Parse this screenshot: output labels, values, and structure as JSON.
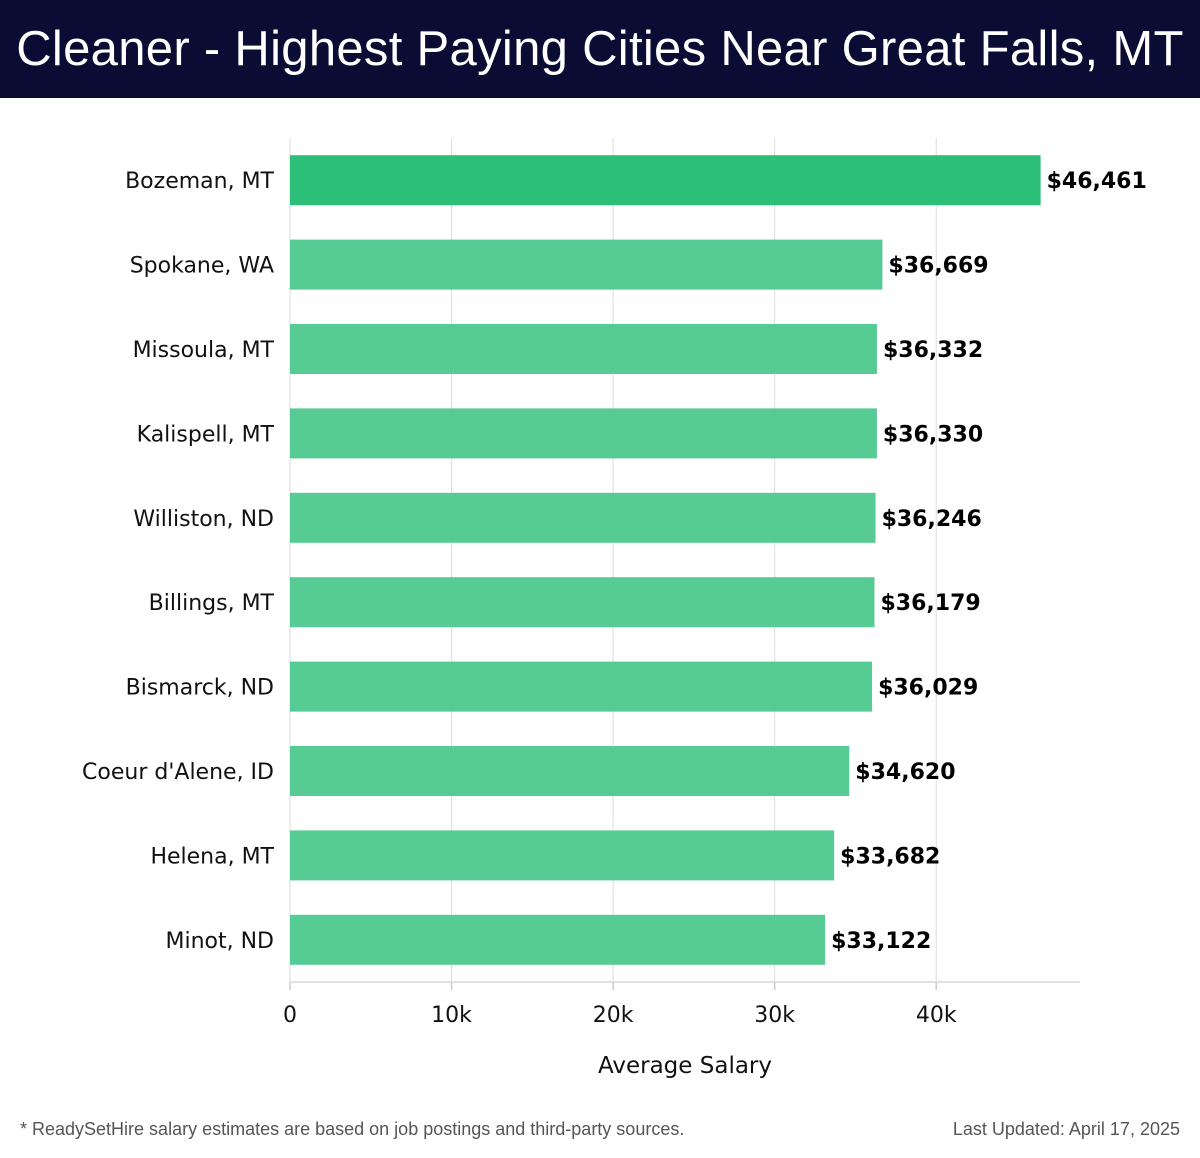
{
  "header": {
    "title": "Cleaner - Highest Paying Cities Near Great Falls, MT"
  },
  "chart_data": {
    "type": "bar",
    "orientation": "horizontal",
    "title": "Cleaner - Highest Paying Cities Near Great Falls, MT",
    "categories": [
      "Bozeman, MT",
      "Spokane, WA",
      "Missoula, MT",
      "Kalispell, MT",
      "Williston, ND",
      "Billings, MT",
      "Bismarck, ND",
      "Coeur d'Alene, ID",
      "Helena, MT",
      "Minot, ND"
    ],
    "values": [
      46461,
      36669,
      36332,
      36330,
      36246,
      36179,
      36029,
      34620,
      33682,
      33122
    ],
    "labels": [
      "$46,461",
      "$36,669",
      "$36,332",
      "$36,330",
      "$36,246",
      "$36,179",
      "$36,029",
      "$34,620",
      "$33,682",
      "$33,122"
    ],
    "xlabel": "Average Salary",
    "ylabel": "",
    "xlim": [
      0,
      48900
    ],
    "xticks": [
      0,
      10000,
      20000,
      30000,
      40000
    ],
    "xtick_labels": [
      "0",
      "10k",
      "20k",
      "30k",
      "40k"
    ],
    "grid": true,
    "colors": {
      "highlight": "#2bbf77",
      "default": "#52c991"
    }
  },
  "footer": {
    "note": "* ReadySetHire salary estimates are based on job postings and third-party sources.",
    "updated": "Last Updated: April 17, 2025"
  }
}
